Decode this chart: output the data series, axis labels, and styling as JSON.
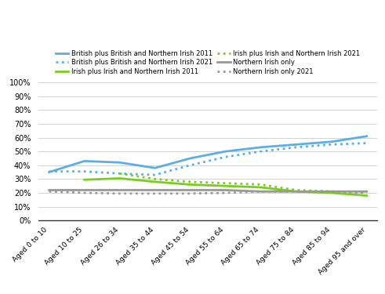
{
  "categories": [
    "Aged 0 to 10",
    "Aged 10 to 25",
    "Aged 26 to 34",
    "Aged 35 to 44",
    "Aged 45 to 54",
    "Aged 55 to 64",
    "Aged 65 to 74",
    "Aged 75 to 84",
    "Aged 85 to 94",
    "Aged 95 and over"
  ],
  "british_2011": [
    35,
    43,
    42,
    38,
    45,
    50,
    53,
    55,
    57,
    61
  ],
  "british_2021": [
    35.5,
    35.5,
    34,
    33,
    40,
    46,
    50,
    53,
    55,
    56
  ],
  "irish_2011": [
    null,
    29.5,
    30.5,
    28,
    26,
    25,
    24,
    21,
    20,
    18
  ],
  "irish_2021": [
    null,
    null,
    34,
    30,
    28,
    27,
    26,
    22,
    21,
    20
  ],
  "northern_irish_2011": [
    22,
    22,
    22,
    22,
    22,
    22,
    21,
    21,
    21,
    21
  ],
  "northern_irish_2021": [
    21,
    20,
    19.5,
    19.5,
    19.5,
    20,
    21,
    21,
    21,
    20
  ],
  "color_british": "#5baee8",
  "color_irish": "#7acc1f",
  "color_ni": "#999999",
  "legend_labels_left": [
    "British plus British and Northern Irish 2011",
    "Irish plus Irish and Northern Irish 2011",
    "Northern Irish only"
  ],
  "legend_labels_right": [
    "British plus British and Northern Irish 2021",
    "Irish plus Irish and Northern Irish 2021",
    "Northern Irish only 2021"
  ],
  "ylim": [
    0,
    100
  ],
  "yticks": [
    0,
    10,
    20,
    30,
    40,
    50,
    60,
    70,
    80,
    90,
    100
  ]
}
